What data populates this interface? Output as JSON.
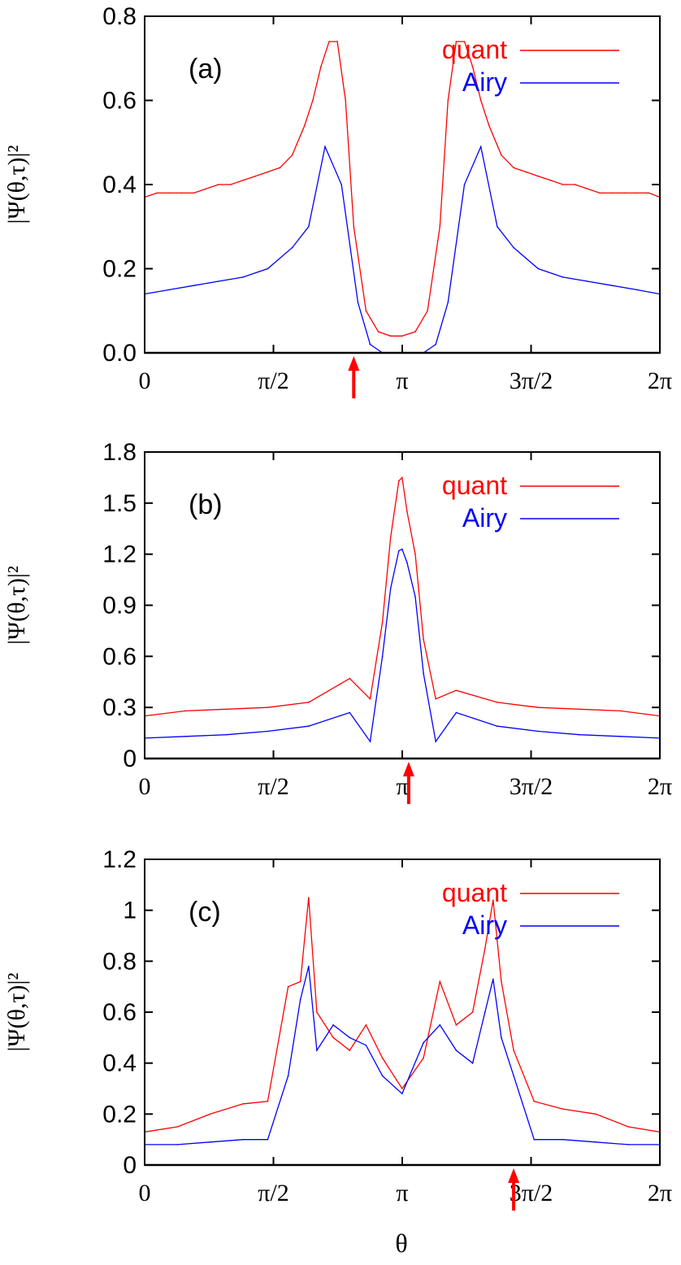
{
  "colors": {
    "quant": "#ff0000",
    "airy": "#0000ff",
    "axis": "#000000",
    "arrow": "#ff0000"
  },
  "xlabel": "θ",
  "chart_data": [
    {
      "type": "line",
      "panel_label": "(a)",
      "ylabel": "|Ψ(θ,τ)|²",
      "xlim": [
        0,
        6.2832
      ],
      "ylim": [
        0,
        0.8
      ],
      "x_ticks": [
        "0",
        "π/2",
        "π",
        "3π/2",
        "2π"
      ],
      "y_ticks": [
        "0.0",
        "0.2",
        "0.4",
        "0.6",
        "0.8"
      ],
      "y_tick_values": [
        0,
        0.2,
        0.4,
        0.6,
        0.8
      ],
      "arrow_x": 2.55,
      "series": [
        {
          "name": "quant",
          "x": [
            0,
            0.15,
            0.3,
            0.45,
            0.6,
            0.75,
            0.9,
            1.05,
            1.2,
            1.35,
            1.5,
            1.65,
            1.8,
            1.95,
            2.05,
            2.15,
            2.25,
            2.35,
            2.45,
            2.55,
            2.7,
            2.85,
            3.0,
            3.14,
            3.3,
            3.45,
            3.6,
            3.7,
            3.8,
            3.9,
            4.0,
            4.1,
            4.2,
            4.35,
            4.5,
            4.65,
            4.8,
            4.95,
            5.1,
            5.25,
            5.4,
            5.55,
            5.7,
            5.85,
            6.0,
            6.15,
            6.28
          ],
          "y": [
            0.37,
            0.38,
            0.38,
            0.38,
            0.38,
            0.39,
            0.4,
            0.4,
            0.41,
            0.42,
            0.43,
            0.44,
            0.47,
            0.54,
            0.6,
            0.68,
            0.74,
            0.74,
            0.6,
            0.3,
            0.1,
            0.05,
            0.04,
            0.04,
            0.05,
            0.1,
            0.3,
            0.6,
            0.74,
            0.74,
            0.68,
            0.6,
            0.54,
            0.47,
            0.44,
            0.43,
            0.42,
            0.41,
            0.4,
            0.4,
            0.39,
            0.38,
            0.38,
            0.38,
            0.38,
            0.38,
            0.37
          ]
        },
        {
          "name": "Airy",
          "x": [
            0,
            0.3,
            0.6,
            0.9,
            1.2,
            1.5,
            1.8,
            2.0,
            2.2,
            2.4,
            2.6,
            2.75,
            2.9,
            3.14,
            3.4,
            3.55,
            3.7,
            3.9,
            4.1,
            4.3,
            4.5,
            4.8,
            5.1,
            5.4,
            5.7,
            6.0,
            6.28
          ],
          "y": [
            0.14,
            0.15,
            0.16,
            0.17,
            0.18,
            0.2,
            0.25,
            0.3,
            0.49,
            0.4,
            0.12,
            0.02,
            0.0,
            0.0,
            0.0,
            0.02,
            0.12,
            0.4,
            0.49,
            0.3,
            0.25,
            0.2,
            0.18,
            0.17,
            0.16,
            0.15,
            0.14
          ]
        }
      ]
    },
    {
      "type": "line",
      "panel_label": "(b)",
      "ylabel": "|Ψ(θ,τ)|²",
      "xlim": [
        0,
        6.2832
      ],
      "ylim": [
        0,
        1.8
      ],
      "x_ticks": [
        "0",
        "π/2",
        "π",
        "3π/2",
        "2π"
      ],
      "y_ticks": [
        "0",
        "0.3",
        "0.6",
        "0.9",
        "1.2",
        "1.5",
        "1.8"
      ],
      "y_tick_values": [
        0,
        0.3,
        0.6,
        0.9,
        1.2,
        1.5,
        1.8
      ],
      "arrow_x": 3.22,
      "series": [
        {
          "name": "quant",
          "x": [
            0,
            0.5,
            1.0,
            1.5,
            2.0,
            2.5,
            2.75,
            2.9,
            3.0,
            3.1,
            3.14,
            3.2,
            3.3,
            3.4,
            3.55,
            3.8,
            4.3,
            4.8,
            5.3,
            5.8,
            6.28
          ],
          "y": [
            0.25,
            0.28,
            0.29,
            0.3,
            0.33,
            0.47,
            0.35,
            0.8,
            1.3,
            1.63,
            1.65,
            1.45,
            1.2,
            0.7,
            0.35,
            0.4,
            0.33,
            0.3,
            0.29,
            0.28,
            0.25
          ]
        },
        {
          "name": "Airy",
          "x": [
            0,
            0.5,
            1.0,
            1.5,
            2.0,
            2.5,
            2.75,
            2.9,
            3.0,
            3.1,
            3.14,
            3.2,
            3.3,
            3.4,
            3.55,
            3.8,
            4.3,
            4.8,
            5.3,
            5.8,
            6.28
          ],
          "y": [
            0.12,
            0.13,
            0.14,
            0.16,
            0.19,
            0.27,
            0.1,
            0.6,
            1.0,
            1.22,
            1.23,
            1.15,
            0.95,
            0.5,
            0.1,
            0.27,
            0.19,
            0.16,
            0.14,
            0.13,
            0.12
          ]
        }
      ]
    },
    {
      "type": "line",
      "panel_label": "(c)",
      "ylabel": "|Ψ(θ,τ)|²",
      "xlim": [
        0,
        6.2832
      ],
      "ylim": [
        0,
        1.2
      ],
      "x_ticks": [
        "0",
        "π/2",
        "π",
        "3π/2",
        "2π"
      ],
      "y_ticks": [
        "0",
        "0.2",
        "0.4",
        "0.6",
        "0.8",
        "1",
        "1.2"
      ],
      "y_tick_values": [
        0,
        0.2,
        0.4,
        0.6,
        0.8,
        1.0,
        1.2
      ],
      "arrow_x": 4.5,
      "series": [
        {
          "name": "quant",
          "x": [
            0,
            0.4,
            0.8,
            1.2,
            1.5,
            1.75,
            1.9,
            2.0,
            2.1,
            2.3,
            2.5,
            2.7,
            2.9,
            3.14,
            3.4,
            3.6,
            3.8,
            4.0,
            4.15,
            4.25,
            4.35,
            4.5,
            4.75,
            5.1,
            5.5,
            5.9,
            6.28
          ],
          "y": [
            0.13,
            0.15,
            0.2,
            0.24,
            0.25,
            0.7,
            0.72,
            1.05,
            0.6,
            0.5,
            0.45,
            0.55,
            0.42,
            0.3,
            0.42,
            0.72,
            0.55,
            0.6,
            0.85,
            1.04,
            0.72,
            0.45,
            0.25,
            0.22,
            0.2,
            0.15,
            0.13
          ]
        },
        {
          "name": "Airy",
          "x": [
            0,
            0.4,
            0.8,
            1.2,
            1.5,
            1.75,
            1.9,
            2.0,
            2.1,
            2.3,
            2.5,
            2.7,
            2.9,
            3.14,
            3.4,
            3.6,
            3.8,
            4.0,
            4.15,
            4.25,
            4.35,
            4.5,
            4.75,
            5.1,
            5.5,
            5.9,
            6.28
          ],
          "y": [
            0.08,
            0.08,
            0.09,
            0.1,
            0.1,
            0.35,
            0.65,
            0.78,
            0.45,
            0.55,
            0.5,
            0.47,
            0.35,
            0.28,
            0.48,
            0.55,
            0.45,
            0.4,
            0.6,
            0.73,
            0.5,
            0.35,
            0.1,
            0.1,
            0.09,
            0.08,
            0.08
          ]
        }
      ]
    }
  ]
}
